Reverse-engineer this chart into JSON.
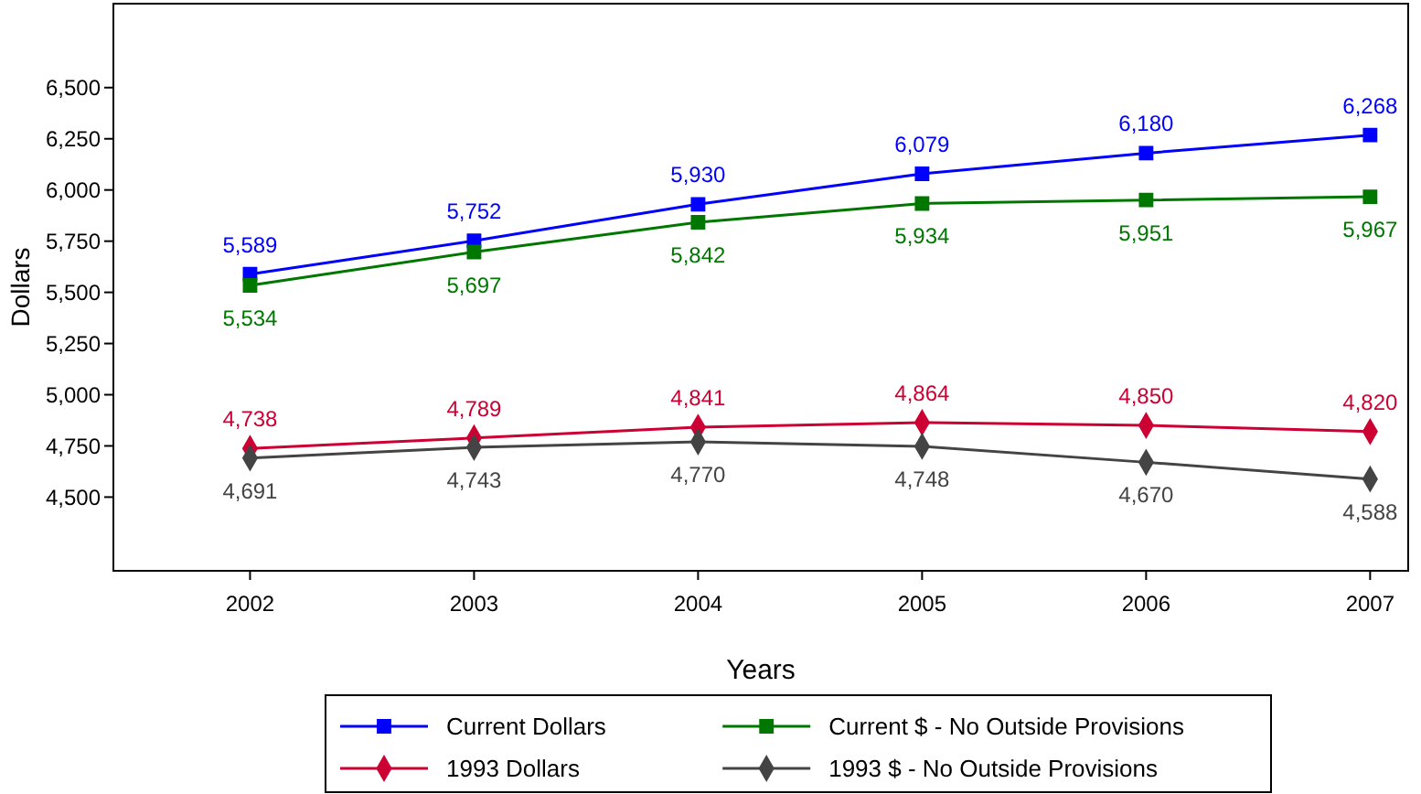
{
  "chart_data": {
    "type": "line",
    "xlabel": "Years",
    "ylabel": "Dollars",
    "x": [
      2002,
      2003,
      2004,
      2005,
      2006,
      2007
    ],
    "xlim": [
      2001.39,
      2007.17
    ],
    "xticks": [
      2002,
      2003,
      2004,
      2005,
      2006,
      2007
    ],
    "ylim": [
      4140,
      6910
    ],
    "yticks": [
      {
        "value": 4500,
        "label": "4,500"
      },
      {
        "value": 4750,
        "label": "4,750"
      },
      {
        "value": 5000,
        "label": "5,000"
      },
      {
        "value": 5250,
        "label": "5,250"
      },
      {
        "value": 5500,
        "label": "5,500"
      },
      {
        "value": 5750,
        "label": "5,750"
      },
      {
        "value": 6000,
        "label": "6,000"
      },
      {
        "value": 6250,
        "label": "6,250"
      },
      {
        "value": 6500,
        "label": "6,500"
      }
    ],
    "series": [
      {
        "name": "Current Dollars",
        "color": "#0000ff",
        "marker": "square",
        "values": [
          5589,
          5752,
          5930,
          6079,
          6180,
          6268
        ],
        "value_labels": [
          "5,589",
          "5,752",
          "5,930",
          "6,079",
          "6,180",
          "6,268"
        ]
      },
      {
        "name": "Current $ - No Outside Provisions",
        "color": "#007700",
        "marker": "square",
        "values": [
          5534,
          5697,
          5842,
          5934,
          5951,
          5967
        ],
        "value_labels": [
          "5,534",
          "5,697",
          "5,842",
          "5,934",
          "5,951",
          "5,967"
        ]
      },
      {
        "name": "1993 Dollars",
        "color": "#cc0033",
        "marker": "diamond",
        "values": [
          4738,
          4789,
          4841,
          4864,
          4850,
          4820
        ],
        "value_labels": [
          "4,738",
          "4,789",
          "4,841",
          "4,864",
          "4,850",
          "4,820"
        ]
      },
      {
        "name": "1993 $ - No Outside Provisions",
        "color": "#444444",
        "marker": "diamond",
        "values": [
          4691,
          4743,
          4770,
          4748,
          4670,
          4588
        ],
        "value_labels": [
          "4,691",
          "4,743",
          "4,770",
          "4,748",
          "4,670",
          "4,588"
        ]
      }
    ],
    "legend": "bottom",
    "grid": false
  }
}
